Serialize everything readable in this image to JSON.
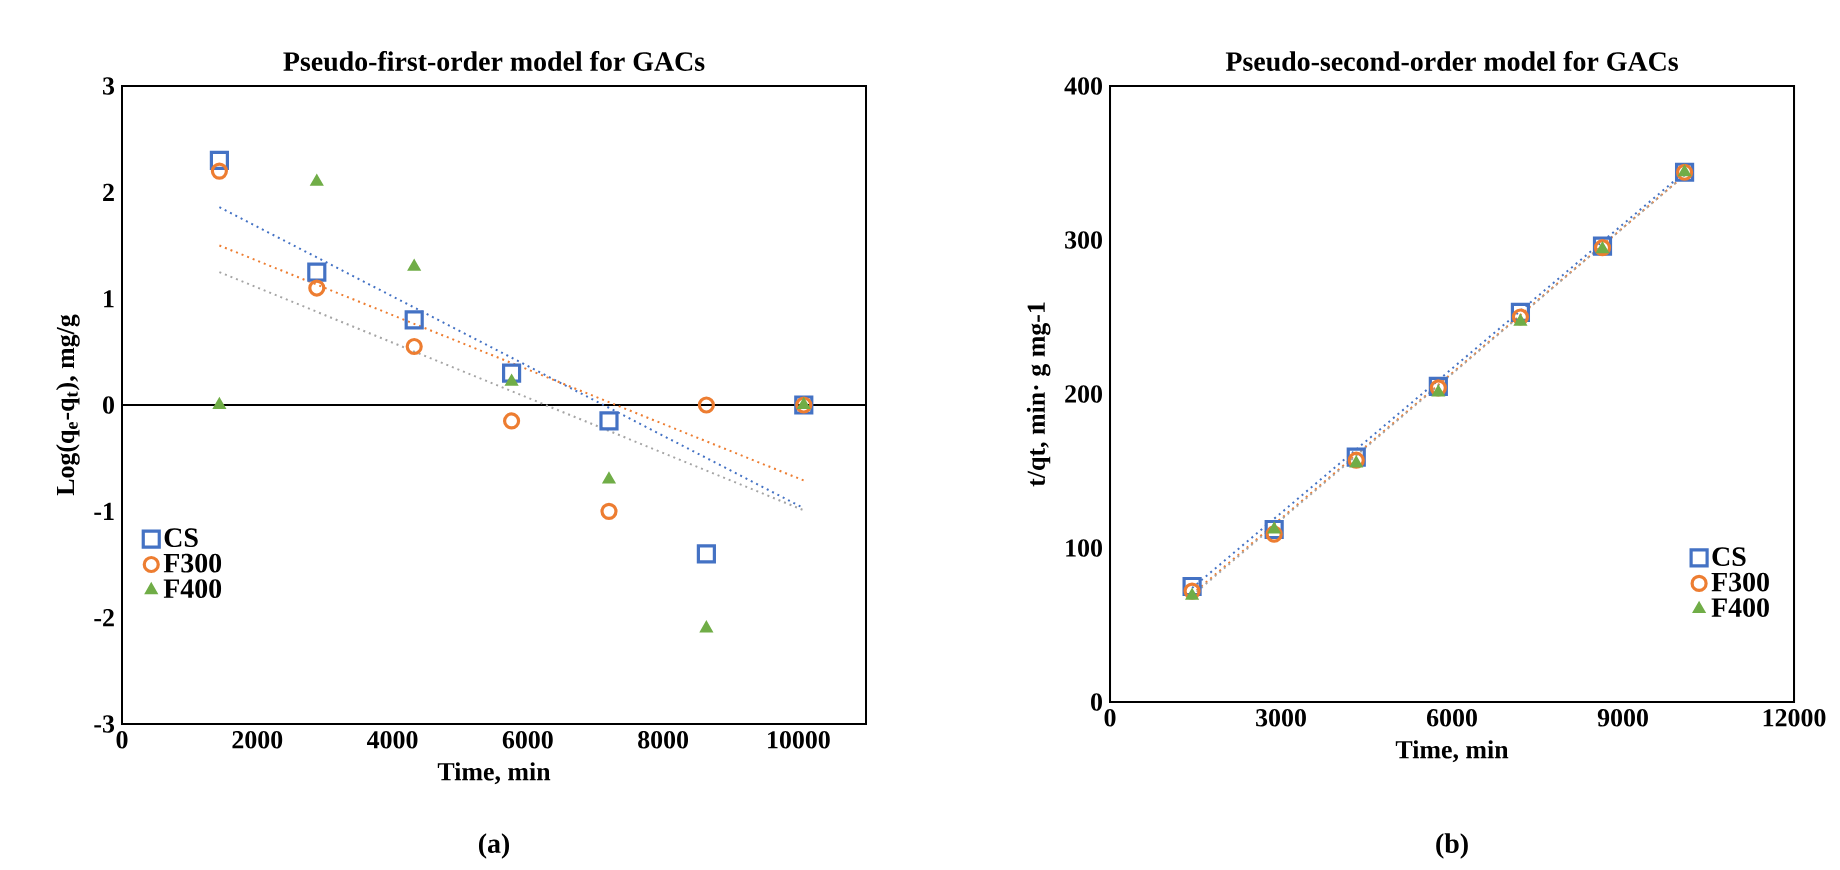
{
  "chart_data": [
    {
      "type": "scatter",
      "title": "Pseudo-first-order model for GACs",
      "xlabel": "Time, min",
      "ylabel": "Log(q$_{e}$-q$_{t}$), mg/g",
      "annotations": [
        "(a)"
      ],
      "xlim": [
        0,
        11000
      ],
      "xticks": [
        0,
        2000,
        4000,
        6000,
        8000,
        10000
      ],
      "ylim": [
        -3,
        3
      ],
      "yticks": [
        -3,
        -2,
        -1,
        0,
        1,
        2,
        3
      ],
      "grid": false,
      "legend": "bottom left",
      "ref_lines": [
        {
          "axis": "y",
          "value": 0,
          "color": "#000000"
        }
      ],
      "series": [
        {
          "name": "CS",
          "color": "#4472c4",
          "marker": "square",
          "x": [
            1440,
            2880,
            4320,
            5760,
            7200,
            8640,
            10080
          ],
          "values": [
            2.3,
            1.25,
            0.8,
            0.3,
            -0.15,
            -1.4,
            0
          ]
        },
        {
          "name": "F300",
          "color": "#ed7d31",
          "marker": "circle",
          "x": [
            1440,
            2880,
            4320,
            5760,
            7200,
            8640,
            10080
          ],
          "values": [
            2.2,
            1.1,
            0.55,
            -0.15,
            -1.0,
            0,
            0
          ]
        },
        {
          "name": "F400",
          "color": "#70ad47",
          "marker": "triangle",
          "x": [
            1440,
            2880,
            4320,
            5760,
            7200,
            8640,
            10080
          ],
          "values": [
            0,
            2.1,
            1.3,
            0.22,
            -0.7,
            -2.1,
            0
          ]
        },
        {
          "type": "line",
          "color": "#4472c4",
          "line_style": "dotted",
          "x": [
            1440,
            10080
          ],
          "values": [
            1.86,
            -0.97
          ]
        },
        {
          "type": "line",
          "color": "#ed7d31",
          "line_style": "dotted",
          "x": [
            1440,
            10080
          ],
          "values": [
            1.5,
            -0.71
          ]
        },
        {
          "type": "line",
          "color": "#a5a5a5",
          "line_style": "dotted",
          "x": [
            1440,
            10080
          ],
          "values": [
            1.25,
            -0.99
          ]
        }
      ]
    },
    {
      "type": "scatter",
      "title": "Pseudo-second-order model for GACs",
      "xlabel": "Time, min",
      "ylabel": "t/qt, min· g mg-1",
      "annotations": [
        "(b)"
      ],
      "xlim": [
        0,
        12000
      ],
      "xticks": [
        0,
        3000,
        6000,
        9000,
        12000
      ],
      "ylim": [
        0,
        400
      ],
      "yticks": [
        0,
        100,
        200,
        300,
        400
      ],
      "grid": false,
      "legend": "bottom right",
      "series": [
        {
          "name": "CS",
          "color": "#4472c4",
          "marker": "square",
          "x": [
            1440,
            2880,
            4320,
            5760,
            7200,
            8640,
            10080
          ],
          "values": [
            75,
            112,
            159,
            205,
            253,
            296,
            344
          ]
        },
        {
          "name": "F300",
          "color": "#ed7d31",
          "marker": "circle",
          "x": [
            1440,
            2880,
            4320,
            5760,
            7200,
            8640,
            10080
          ],
          "values": [
            72,
            109,
            157,
            204,
            250,
            295,
            344
          ]
        },
        {
          "name": "F400",
          "color": "#70ad47",
          "marker": "triangle",
          "x": [
            1440,
            2880,
            4320,
            5760,
            7200,
            8640,
            10080
          ],
          "values": [
            69,
            112,
            155,
            201,
            247,
            294,
            344
          ]
        },
        {
          "type": "line",
          "color": "#4472c4",
          "line_style": "dotted",
          "x": [
            1440,
            10080
          ],
          "values": [
            74,
            344
          ]
        },
        {
          "type": "line",
          "color": "#ed7d31",
          "line_style": "dotted",
          "x": [
            1440,
            10080
          ],
          "values": [
            70,
            342
          ]
        },
        {
          "type": "line",
          "color": "#a5a5a5",
          "line_style": "dotted",
          "x": [
            1440,
            10080
          ],
          "values": [
            69,
            342
          ]
        }
      ]
    }
  ]
}
